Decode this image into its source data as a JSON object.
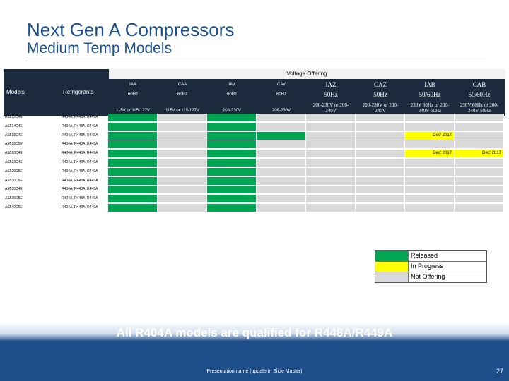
{
  "slide": {
    "title": "Next Gen A Compressors",
    "subtitle": "Medium Temp Models",
    "banner": "All R404A models are qualified for R448A/R449A",
    "presentation_name": "Presentation name (update in Slide Master)",
    "page_number": "27"
  },
  "table": {
    "voltage_offering_label": "Voltage Offering",
    "models_header": "Models",
    "refrigerants_header": "Refrigerants",
    "columns": [
      {
        "code": "IAA",
        "freq": "60Hz",
        "voltage": "115V or 115-127V"
      },
      {
        "code": "CAA",
        "freq": "60Hz",
        "voltage": "115V or 115-127V"
      },
      {
        "code": "IAV",
        "freq": "60Hz",
        "voltage": "208-230V"
      },
      {
        "code": "CAV",
        "freq": "60Hz",
        "voltage": "208-230V"
      },
      {
        "code": "IAZ",
        "freq": "50Hz",
        "voltage": "200-230V or 200-240V"
      },
      {
        "code": "CAZ",
        "freq": "50Hz",
        "voltage": "200-230V or 200-240V"
      },
      {
        "code": "IAB",
        "freq": "50/60Hz",
        "voltage": "230V 60Hz or 200-240V 50Hz"
      },
      {
        "code": "CAB",
        "freq": "50/60Hz",
        "voltage": "230V 60Hz or 200-240V 50Hz"
      }
    ],
    "status_colors": {
      "R": "#00a651",
      "P": "#ffff00",
      "N": "#d9d9d9"
    },
    "rows": [
      {
        "model": "AS512C4E",
        "refrigerants": "R404A, R448A, R449A",
        "statuses": [
          "R",
          "N",
          "R",
          "N",
          "N",
          "N",
          "N",
          "N"
        ],
        "notes": [
          "",
          "",
          "",
          "",
          "",
          "",
          "",
          ""
        ]
      },
      {
        "model": "AS514C4E",
        "refrigerants": "R404A, R448A, R449A",
        "statuses": [
          "R",
          "N",
          "R",
          "N",
          "N",
          "N",
          "N",
          "N"
        ],
        "notes": [
          "",
          "",
          "",
          "",
          "",
          "",
          "",
          ""
        ]
      },
      {
        "model": "AS518C4E",
        "refrigerants": "R404A, R448A, R449A",
        "statuses": [
          "R",
          "N",
          "R",
          "R",
          "N",
          "N",
          "P",
          "N"
        ],
        "notes": [
          "",
          "",
          "",
          "",
          "",
          "",
          "Dec' 2017",
          ""
        ]
      },
      {
        "model": "AS518C5E",
        "refrigerants": "R404A, R448A, R449A",
        "statuses": [
          "R",
          "N",
          "R",
          "N",
          "N",
          "N",
          "N",
          "N"
        ],
        "notes": [
          "",
          "",
          "",
          "",
          "",
          "",
          "",
          ""
        ]
      },
      {
        "model": "AS520C4E",
        "refrigerants": "R404A, R448A, R449A",
        "statuses": [
          "R",
          "N",
          "R",
          "N",
          "N",
          "N",
          "P",
          "P"
        ],
        "notes": [
          "",
          "",
          "",
          "",
          "",
          "",
          "Dec' 2017",
          "Dec' 2017"
        ]
      },
      {
        "model": "AS523C4E",
        "refrigerants": "R404A, R448A, R449A",
        "statuses": [
          "R",
          "N",
          "R",
          "N",
          "N",
          "N",
          "N",
          "N"
        ],
        "notes": [
          "",
          "",
          "",
          "",
          "",
          "",
          "",
          ""
        ]
      },
      {
        "model": "AS528C5E",
        "refrigerants": "R404A, R448A, R449A",
        "statuses": [
          "R",
          "N",
          "R",
          "N",
          "N",
          "N",
          "N",
          "N"
        ],
        "notes": [
          "",
          "",
          "",
          "",
          "",
          "",
          "",
          ""
        ]
      },
      {
        "model": "AS530C5E",
        "refrigerants": "R404A, R448A, R449A",
        "statuses": [
          "R",
          "N",
          "R",
          "N",
          "N",
          "N",
          "N",
          "N"
        ],
        "notes": [
          "",
          "",
          "",
          "",
          "",
          "",
          "",
          ""
        ]
      },
      {
        "model": "AS535C4E",
        "refrigerants": "R404A, R448A, R449A",
        "statuses": [
          "R",
          "N",
          "R",
          "N",
          "N",
          "N",
          "N",
          "N"
        ],
        "notes": [
          "",
          "",
          "",
          "",
          "",
          "",
          "",
          ""
        ]
      },
      {
        "model": "AS535C5E",
        "refrigerants": "R404A, R448A, R449A",
        "statuses": [
          "R",
          "N",
          "R",
          "N",
          "N",
          "N",
          "N",
          "N"
        ],
        "notes": [
          "",
          "",
          "",
          "",
          "",
          "",
          "",
          ""
        ]
      },
      {
        "model": "AS540C5E",
        "refrigerants": "R404A, R448A, R449A",
        "statuses": [
          "R",
          "N",
          "R",
          "N",
          "N",
          "N",
          "N",
          "N"
        ],
        "notes": [
          "",
          "",
          "",
          "",
          "",
          "",
          "",
          ""
        ]
      }
    ]
  },
  "legend": [
    {
      "label": "Released",
      "color": "#00a651"
    },
    {
      "label": "In Progress",
      "color": "#ffff00"
    },
    {
      "label": "Not Offering",
      "color": "#d9d9d9"
    }
  ]
}
